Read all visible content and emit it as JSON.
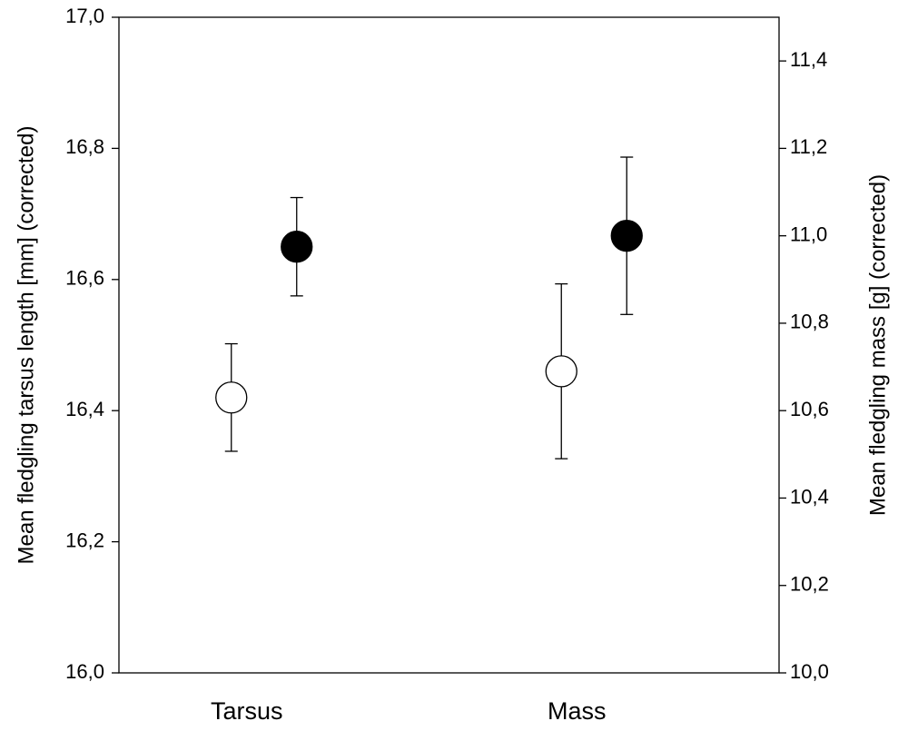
{
  "chart_data": {
    "type": "errorbar-dot",
    "ylabel": "Mean fledgling tarsus length [mm] (corrected)",
    "y2label": "Mean fledgling mass [g] (corrected)",
    "categories": [
      "Tarsus",
      "Mass"
    ],
    "series": [
      {
        "color": "#ffffff",
        "values": [
          16.42,
          null
        ],
        "errors": [
          0.082,
          null
        ]
      },
      {
        "color": "#000000",
        "values": [
          16.65,
          null
        ],
        "errors": [
          0.075,
          null
        ]
      },
      {
        "color": "#ffffff",
        "axis": "y2",
        "values": [
          null,
          10.69
        ],
        "errors": [
          null,
          0.2
        ]
      },
      {
        "color": "#000000",
        "axis": "y2",
        "values": [
          null,
          11.0
        ],
        "errors": [
          null,
          0.18
        ]
      }
    ],
    "ylim": [
      16.0,
      17.0
    ],
    "yticks": [
      {
        "value": 16.0,
        "label": "16,0"
      },
      {
        "value": 16.2,
        "label": "16,2"
      },
      {
        "value": 16.4,
        "label": "16,4"
      },
      {
        "value": 16.6,
        "label": "16,6"
      },
      {
        "value": 16.8,
        "label": "16,8"
      },
      {
        "value": 17.0,
        "label": "17,0"
      }
    ],
    "y2lim": [
      10.0,
      11.5
    ],
    "y2ticks": [
      {
        "value": 10.0,
        "label": "10,0"
      },
      {
        "value": 10.2,
        "label": "10,2"
      },
      {
        "value": 10.4,
        "label": "10,4"
      },
      {
        "value": 10.6,
        "label": "10,6"
      },
      {
        "value": 10.8,
        "label": "10,8"
      },
      {
        "value": 11.0,
        "label": "11,0"
      },
      {
        "value": 11.2,
        "label": "11,2"
      },
      {
        "value": 11.4,
        "label": "11,4"
      }
    ]
  }
}
